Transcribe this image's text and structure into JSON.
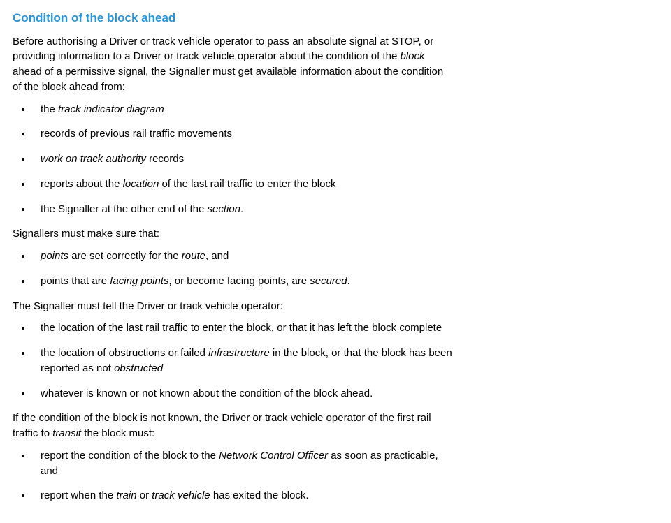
{
  "heading": {
    "text": "Condition of the block ahead",
    "color": "#2a94d6"
  },
  "intro": {
    "segments": [
      {
        "t": "Before authorising a Driver or track vehicle operator to pass an absolute signal at STOP, or providing information to a Driver or track vehicle operator about the condition of the ",
        "i": false
      },
      {
        "t": "block",
        "i": true
      },
      {
        "t": " ahead of a permissive signal, the Signaller must get available information about the condition of the block ahead from:",
        "i": false
      }
    ]
  },
  "list1": [
    [
      {
        "t": "the ",
        "i": false
      },
      {
        "t": "track indicator diagram",
        "i": true
      }
    ],
    [
      {
        "t": "records of previous rail traffic movements",
        "i": false
      }
    ],
    [
      {
        "t": "work on track authority",
        "i": true
      },
      {
        "t": " records",
        "i": false
      }
    ],
    [
      {
        "t": "reports about the ",
        "i": false
      },
      {
        "t": "location",
        "i": true
      },
      {
        "t": " of the last rail traffic to enter the block",
        "i": false
      }
    ],
    [
      {
        "t": "the Signaller at the other end of the ",
        "i": false
      },
      {
        "t": "section",
        "i": true
      },
      {
        "t": ".",
        "i": false
      }
    ]
  ],
  "para2": {
    "segments": [
      {
        "t": "Signallers must make sure that:",
        "i": false
      }
    ]
  },
  "list2": [
    [
      {
        "t": "points",
        "i": true
      },
      {
        "t": " are set correctly for the ",
        "i": false
      },
      {
        "t": "route",
        "i": true
      },
      {
        "t": ", and",
        "i": false
      }
    ],
    [
      {
        "t": "points that are ",
        "i": false
      },
      {
        "t": "facing points",
        "i": true
      },
      {
        "t": ", or become facing points, are ",
        "i": false
      },
      {
        "t": "secured",
        "i": true
      },
      {
        "t": ".",
        "i": false
      }
    ]
  ],
  "para3": {
    "segments": [
      {
        "t": "The Signaller must tell the Driver or track vehicle operator:",
        "i": false
      }
    ]
  },
  "list3": [
    [
      {
        "t": "the location of the last rail traffic to enter the block, or that it has left the block complete",
        "i": false
      }
    ],
    [
      {
        "t": "the location of obstructions or failed ",
        "i": false
      },
      {
        "t": "infrastructure",
        "i": true
      },
      {
        "t": " in the block, or that the block has been reported as not ",
        "i": false
      },
      {
        "t": "obstructed",
        "i": true
      }
    ],
    [
      {
        "t": "whatever is known or not known about the condition of the block ahead.",
        "i": false
      }
    ]
  ],
  "para4": {
    "segments": [
      {
        "t": "If the condition of the block is not known, the Driver or track vehicle operator of the first rail traffic to ",
        "i": false
      },
      {
        "t": "transit",
        "i": true
      },
      {
        "t": " the block must:",
        "i": false
      }
    ]
  },
  "list4": [
    [
      {
        "t": "report the condition of the block to the ",
        "i": false
      },
      {
        "t": "Network Control Officer",
        "i": true
      },
      {
        "t": " as soon as practicable, and",
        "i": false
      }
    ],
    [
      {
        "t": "report when the ",
        "i": false
      },
      {
        "t": "train",
        "i": true
      },
      {
        "t": " or ",
        "i": false
      },
      {
        "t": "track vehicle",
        "i": true
      },
      {
        "t": " has exited the block.",
        "i": false
      }
    ]
  ]
}
